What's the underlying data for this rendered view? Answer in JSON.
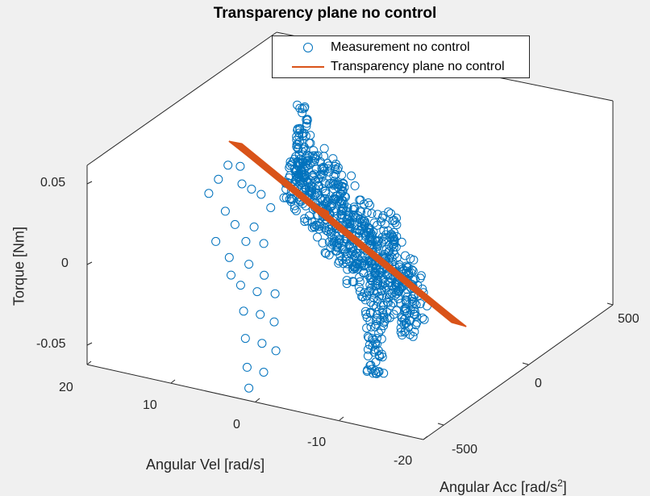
{
  "chart_data": {
    "type": "scatter",
    "title": "Transparency plane no control",
    "xlabel": "Angular Vel [rad/s]",
    "ylabel": "Angular Acc [rad/s",
    "ylabel_sup": "2",
    "ylabel_close": "]",
    "zlabel": "Torque [Nm]",
    "xlim": [
      -20,
      20
    ],
    "ylim": [
      -700,
      700
    ],
    "zlim": [
      -0.07,
      0.07
    ],
    "x_ticks": [
      "20",
      "10",
      "0",
      "-10",
      "-20"
    ],
    "y_ticks": [
      "-500",
      "0",
      "500"
    ],
    "z_ticks": [
      "0.05",
      "0",
      "-0.05"
    ],
    "grid": false,
    "legend_position": "top-center",
    "series": [
      {
        "name": "Measurement no control",
        "marker": "circle",
        "color": "#0072BD",
        "note": "dense cloud of points roughly along the plane",
        "points": [
          [
            2,
            -20,
            0.062
          ],
          [
            1,
            10,
            0.058
          ],
          [
            3,
            -40,
            0.055
          ],
          [
            0,
            0,
            0.05
          ],
          [
            -1,
            20,
            0.045
          ],
          [
            4,
            -60,
            0.048
          ],
          [
            -2,
            40,
            0.04
          ],
          [
            2,
            -30,
            0.035
          ],
          [
            -3,
            60,
            0.03
          ],
          [
            1,
            -10,
            0.025
          ],
          [
            -1,
            30,
            0.02
          ],
          [
            3,
            -50,
            0.018
          ],
          [
            0,
            15,
            0.012
          ],
          [
            -2,
            50,
            0.008
          ],
          [
            2,
            -15,
            0.004
          ],
          [
            -1,
            10,
            0.0
          ],
          [
            1,
            -25,
            -0.004
          ],
          [
            -3,
            35,
            -0.008
          ],
          [
            0,
            -5,
            -0.012
          ],
          [
            -2,
            25,
            -0.018
          ],
          [
            -4,
            60,
            -0.022
          ],
          [
            -1,
            -10,
            -0.026
          ],
          [
            -3,
            20,
            -0.03
          ],
          [
            -5,
            40,
            -0.035
          ],
          [
            -2,
            -20,
            -0.04
          ],
          [
            -4,
            10,
            -0.045
          ],
          [
            -6,
            30,
            -0.05
          ],
          [
            -3,
            -30,
            -0.055
          ],
          [
            -5,
            0,
            -0.06
          ],
          [
            -4,
            -40,
            -0.065
          ]
        ]
      },
      {
        "name": "Transparency plane no control",
        "color": "#D95319",
        "type": "plane"
      }
    ]
  }
}
